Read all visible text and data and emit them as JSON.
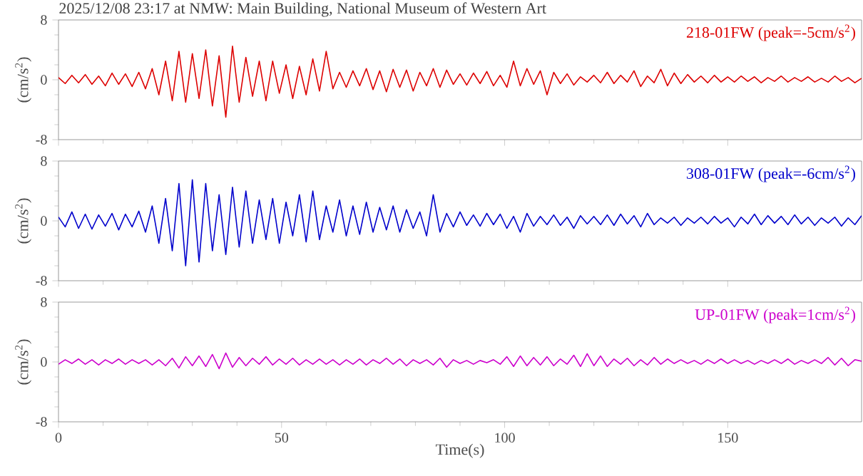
{
  "chart_data": [
    {
      "type": "line",
      "title": "2025/12/08 23:17 at NMW: Main Building, National Museum of Western Art",
      "ylabel": "(cm/s$^{2}$)",
      "annotations": [
        "218-01FW (peak=-5cm/s$^{2}$)"
      ],
      "xlim": [
        0,
        180
      ],
      "ylim": [
        -8,
        8
      ],
      "yticks": [
        -8,
        0,
        8
      ],
      "xticks": [
        0,
        50,
        100,
        150
      ],
      "tick_labels": "y",
      "grid": false,
      "x": [
        0,
        1.5,
        3,
        4.5,
        6,
        7.5,
        9,
        10.5,
        12,
        13.5,
        15,
        16.5,
        18,
        19.5,
        21,
        22.5,
        24,
        25.5,
        27,
        28.5,
        30,
        31.5,
        33,
        34.5,
        36,
        37.5,
        39,
        40.5,
        42,
        43.5,
        45,
        46.5,
        48,
        49.5,
        51,
        52.5,
        54,
        55.5,
        57,
        58.5,
        60,
        61.5,
        63,
        64.5,
        66,
        67.5,
        69,
        70.5,
        72,
        73.5,
        75,
        76.5,
        78,
        79.5,
        81,
        82.5,
        84,
        85.5,
        87,
        88.5,
        90,
        91.5,
        93,
        94.5,
        96,
        97.5,
        99,
        100.5,
        102,
        103.5,
        105,
        106.5,
        108,
        109.5,
        111,
        112.5,
        114,
        115.5,
        117,
        118.5,
        120,
        121.5,
        123,
        124.5,
        126,
        127.5,
        129,
        130.5,
        132,
        133.5,
        135,
        136.5,
        138,
        139.5,
        141,
        142.5,
        144,
        145.5,
        147,
        148.5,
        150,
        151.5,
        153,
        154.5,
        156,
        157.5,
        159,
        160.5,
        162,
        163.5,
        165,
        166.5,
        168,
        169.5,
        171,
        172.5,
        174,
        175.5,
        177,
        178.5,
        180
      ],
      "series": [
        {
          "color": "#dd0000",
          "values": [
            0.3,
            -0.5,
            0.6,
            -0.4,
            0.7,
            -0.6,
            0.5,
            -0.8,
            0.9,
            -0.6,
            0.8,
            -0.9,
            1.0,
            -1.2,
            1.5,
            -2.0,
            2.5,
            -2.8,
            3.8,
            -3.0,
            3.5,
            -2.5,
            4.0,
            -3.5,
            3.2,
            -5.0,
            4.5,
            -3.0,
            3.0,
            -2.2,
            2.5,
            -2.8,
            2.5,
            -1.8,
            2.0,
            -2.5,
            1.8,
            -2.0,
            2.8,
            -1.5,
            3.8,
            -1.2,
            1.0,
            -1.0,
            1.2,
            -0.8,
            1.5,
            -1.3,
            1.2,
            -1.6,
            1.4,
            -1.0,
            1.3,
            -1.5,
            1.0,
            -0.8,
            1.5,
            -1.0,
            1.3,
            -0.6,
            0.8,
            -0.7,
            0.9,
            -0.5,
            1.1,
            -0.8,
            0.6,
            -1.0,
            2.5,
            -0.8,
            1.5,
            -0.6,
            1.2,
            -2.0,
            1.0,
            -0.5,
            0.8,
            -0.7,
            0.4,
            -0.3,
            0.6,
            -0.4,
            1.0,
            -0.5,
            0.6,
            -0.3,
            1.2,
            -0.9,
            0.5,
            -0.4,
            1.4,
            -0.8,
            0.9,
            -0.5,
            0.7,
            -0.3,
            0.5,
            -0.4,
            0.6,
            -0.3,
            0.4,
            -0.3,
            0.5,
            -0.2,
            0.4,
            -0.4,
            0.3,
            -0.2,
            0.5,
            -0.3,
            0.3,
            -0.2,
            0.4,
            -0.3,
            0.2,
            -0.3,
            0.5,
            -0.2,
            0.3,
            -0.4,
            0.2
          ]
        }
      ]
    },
    {
      "type": "line",
      "ylabel": "(cm/s$^{2}$)",
      "annotations": [
        "308-01FW (peak=-6cm/s$^{2}$)"
      ],
      "xlim": [
        0,
        180
      ],
      "ylim": [
        -8,
        8
      ],
      "yticks": [
        -8,
        0,
        8
      ],
      "xticks": [
        0,
        50,
        100,
        150
      ],
      "tick_labels": "y",
      "grid": false,
      "x": [
        0,
        1.5,
        3,
        4.5,
        6,
        7.5,
        9,
        10.5,
        12,
        13.5,
        15,
        16.5,
        18,
        19.5,
        21,
        22.5,
        24,
        25.5,
        27,
        28.5,
        30,
        31.5,
        33,
        34.5,
        36,
        37.5,
        39,
        40.5,
        42,
        43.5,
        45,
        46.5,
        48,
        49.5,
        51,
        52.5,
        54,
        55.5,
        57,
        58.5,
        60,
        61.5,
        63,
        64.5,
        66,
        67.5,
        69,
        70.5,
        72,
        73.5,
        75,
        76.5,
        78,
        79.5,
        81,
        82.5,
        84,
        85.5,
        87,
        88.5,
        90,
        91.5,
        93,
        94.5,
        96,
        97.5,
        99,
        100.5,
        102,
        103.5,
        105,
        106.5,
        108,
        109.5,
        111,
        112.5,
        114,
        115.5,
        117,
        118.5,
        120,
        121.5,
        123,
        124.5,
        126,
        127.5,
        129,
        130.5,
        132,
        133.5,
        135,
        136.5,
        138,
        139.5,
        141,
        142.5,
        144,
        145.5,
        147,
        148.5,
        150,
        151.5,
        153,
        154.5,
        156,
        157.5,
        159,
        160.5,
        162,
        163.5,
        165,
        166.5,
        168,
        169.5,
        171,
        172.5,
        174,
        175.5,
        177,
        178.5,
        180
      ],
      "series": [
        {
          "color": "#0000cc",
          "values": [
            0.5,
            -0.8,
            1.2,
            -1.0,
            0.9,
            -1.1,
            0.8,
            -0.7,
            1.0,
            -1.2,
            0.9,
            -0.8,
            1.3,
            -1.5,
            2.0,
            -3.0,
            3.0,
            -4.0,
            5.0,
            -6.0,
            5.5,
            -5.5,
            5.0,
            -4.0,
            3.5,
            -4.5,
            4.5,
            -3.5,
            4.0,
            -3.0,
            2.8,
            -2.5,
            3.0,
            -3.0,
            2.5,
            -2.0,
            3.5,
            -2.8,
            4.0,
            -2.5,
            2.0,
            -1.5,
            2.8,
            -2.0,
            2.0,
            -1.8,
            2.5,
            -1.5,
            1.8,
            -1.2,
            2.0,
            -1.5,
            1.5,
            -1.0,
            1.2,
            -2.0,
            3.5,
            -1.5,
            1.0,
            -0.8,
            1.2,
            -0.6,
            0.8,
            -0.7,
            1.0,
            -0.5,
            0.9,
            -1.0,
            0.6,
            -1.5,
            1.0,
            -0.7,
            0.6,
            -0.5,
            0.8,
            -0.6,
            0.5,
            -1.0,
            0.7,
            -0.4,
            0.6,
            -0.5,
            0.8,
            -0.6,
            0.9,
            -0.4,
            0.7,
            -0.8,
            1.0,
            -0.5,
            0.4,
            -0.3,
            0.5,
            -0.6,
            0.4,
            -0.3,
            0.5,
            -0.4,
            0.6,
            -0.3,
            0.4,
            -0.8,
            0.5,
            -0.4,
            0.9,
            -0.5,
            0.7,
            -0.3,
            0.6,
            -0.5,
            0.8,
            -0.4,
            0.5,
            -0.6,
            0.4,
            -0.3,
            0.5,
            -0.7,
            0.4,
            -0.5,
            0.7
          ]
        }
      ]
    },
    {
      "type": "line",
      "xlabel": "Time(s)",
      "ylabel": "(cm/s$^{2}$)",
      "annotations": [
        "UP-01FW (peak=1cm/s$^{2}$)"
      ],
      "xlim": [
        0,
        180
      ],
      "ylim": [
        -8,
        8
      ],
      "yticks": [
        -8,
        0,
        8
      ],
      "xticks": [
        0,
        50,
        100,
        150
      ],
      "grid": false,
      "x": [
        0,
        1.5,
        3,
        4.5,
        6,
        7.5,
        9,
        10.5,
        12,
        13.5,
        15,
        16.5,
        18,
        19.5,
        21,
        22.5,
        24,
        25.5,
        27,
        28.5,
        30,
        31.5,
        33,
        34.5,
        36,
        37.5,
        39,
        40.5,
        42,
        43.5,
        45,
        46.5,
        48,
        49.5,
        51,
        52.5,
        54,
        55.5,
        57,
        58.5,
        60,
        61.5,
        63,
        64.5,
        66,
        67.5,
        69,
        70.5,
        72,
        73.5,
        75,
        76.5,
        78,
        79.5,
        81,
        82.5,
        84,
        85.5,
        87,
        88.5,
        90,
        91.5,
        93,
        94.5,
        96,
        97.5,
        99,
        100.5,
        102,
        103.5,
        105,
        106.5,
        108,
        109.5,
        111,
        112.5,
        114,
        115.5,
        117,
        118.5,
        120,
        121.5,
        123,
        124.5,
        126,
        127.5,
        129,
        130.5,
        132,
        133.5,
        135,
        136.5,
        138,
        139.5,
        141,
        142.5,
        144,
        145.5,
        147,
        148.5,
        150,
        151.5,
        153,
        154.5,
        156,
        157.5,
        159,
        160.5,
        162,
        163.5,
        165,
        166.5,
        168,
        169.5,
        171,
        172.5,
        174,
        175.5,
        177,
        178.5,
        180
      ],
      "series": [
        {
          "color": "#cc00cc",
          "values": [
            -0.3,
            0.3,
            -0.2,
            0.4,
            -0.3,
            0.3,
            -0.4,
            0.3,
            -0.2,
            0.4,
            -0.3,
            0.3,
            -0.2,
            0.3,
            -0.4,
            0.3,
            -0.5,
            0.5,
            -0.8,
            0.7,
            -0.5,
            0.8,
            -0.6,
            1.0,
            -0.9,
            1.2,
            -0.7,
            0.6,
            -0.5,
            0.5,
            -0.3,
            0.7,
            -0.4,
            0.4,
            -0.3,
            0.5,
            -0.4,
            0.3,
            -0.3,
            0.4,
            -0.3,
            0.3,
            -0.4,
            0.3,
            -0.3,
            0.4,
            -0.4,
            0.3,
            -0.2,
            0.5,
            -0.3,
            0.4,
            -0.5,
            0.3,
            -0.2,
            0.3,
            -0.4,
            0.5,
            -0.7,
            0.3,
            -0.2,
            0.2,
            -0.3,
            0.2,
            -0.1,
            0.3,
            -0.3,
            0.7,
            -0.6,
            0.8,
            -0.5,
            0.6,
            -0.4,
            0.7,
            -0.5,
            0.4,
            -0.3,
            0.9,
            -0.6,
            1.1,
            -0.5,
            0.8,
            -0.6,
            0.4,
            -0.3,
            0.5,
            -0.5,
            0.3,
            -0.4,
            0.6,
            -0.3,
            0.4,
            -0.2,
            0.3,
            -0.2,
            0.2,
            -0.3,
            0.3,
            -0.2,
            0.4,
            -0.2,
            0.3,
            -0.2,
            0.2,
            -0.3,
            0.2,
            -0.2,
            0.3,
            -0.2,
            0.4,
            -0.3,
            0.2,
            -0.2,
            0.3,
            -0.2,
            0.6,
            -0.4,
            0.5,
            -0.5,
            0.3,
            0.1
          ]
        }
      ]
    }
  ]
}
